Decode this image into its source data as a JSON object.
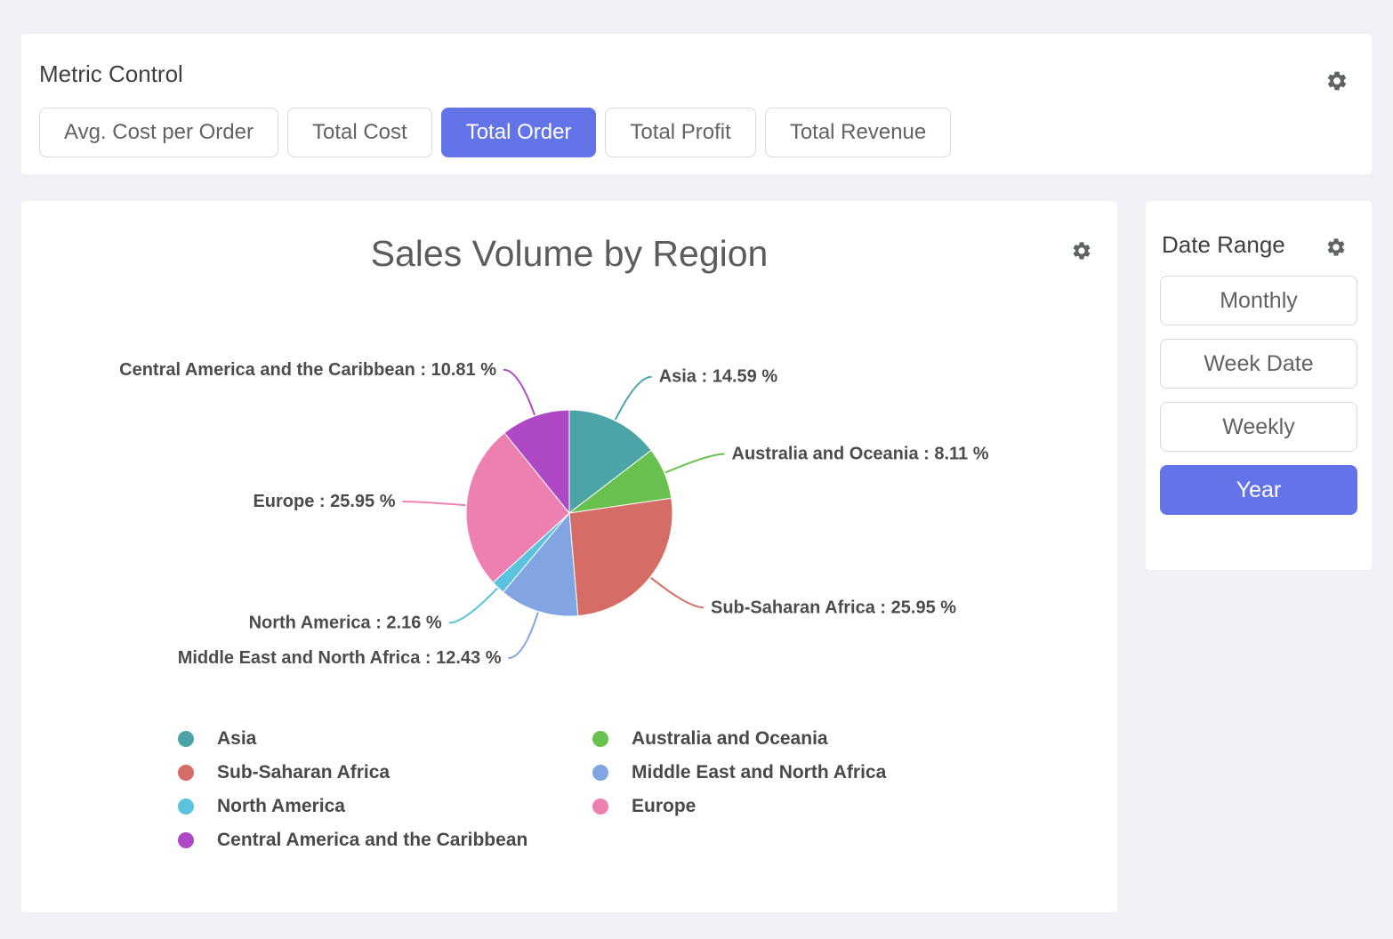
{
  "colors": {
    "accent": "#6374E8",
    "page_background": "#F0F1F6",
    "panel_background": "#FFFFFF",
    "pie_label_text": "#4C4C4C",
    "icon_gray": "#5F6368"
  },
  "metric_control": {
    "title": "Metric Control",
    "buttons": [
      {
        "label": "Avg. Cost per Order",
        "selected": false
      },
      {
        "label": "Total Cost",
        "selected": false
      },
      {
        "label": "Total Order",
        "selected": true
      },
      {
        "label": "Total Profit",
        "selected": false
      },
      {
        "label": "Total Revenue",
        "selected": false
      }
    ]
  },
  "date_range": {
    "title": "Date Range",
    "buttons": [
      {
        "label": "Monthly",
        "selected": false
      },
      {
        "label": "Week Date",
        "selected": false
      },
      {
        "label": "Weekly",
        "selected": false
      },
      {
        "label": "Year",
        "selected": true
      }
    ]
  },
  "chart_data": {
    "type": "pie",
    "title": "Sales Volume by Region",
    "value_unit": "%",
    "label_format": "{name} : {value} %",
    "start_angle": "top",
    "direction": "clockwise",
    "legend_position": "bottom",
    "slices": [
      {
        "label": "Asia",
        "value": 14.59,
        "color": "#4DA4A6"
      },
      {
        "label": "Australia and Oceania",
        "value": 8.11,
        "color": "#68C04F"
      },
      {
        "label": "Sub-Saharan Africa",
        "value": 25.95,
        "color": "#D66C66"
      },
      {
        "label": "Middle East and North Africa",
        "value": 12.43,
        "color": "#81A4E2"
      },
      {
        "label": "North America",
        "value": 2.16,
        "color": "#5CC3DE"
      },
      {
        "label": "Europe",
        "value": 25.95,
        "color": "#ED80B1"
      },
      {
        "label": "Central America and the Caribbean",
        "value": 10.81,
        "color": "#AF48C4"
      }
    ],
    "legend_order": [
      "Asia",
      "Australia and Oceania",
      "Sub-Saharan Africa",
      "Middle East and North Africa",
      "North America",
      "Europe",
      "Central America and the Caribbean"
    ]
  }
}
